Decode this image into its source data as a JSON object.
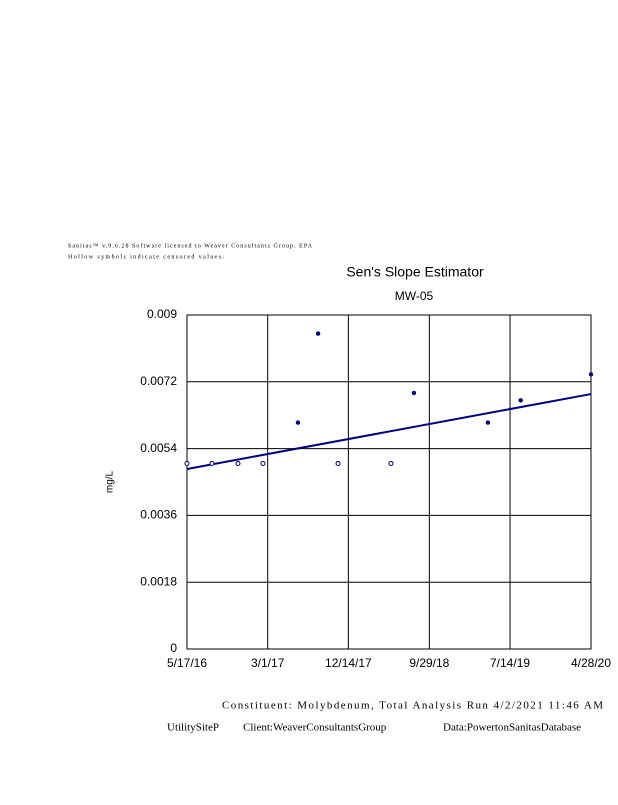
{
  "chart_data": {
    "type": "scatter",
    "header": [
      "Sanitas™ v.9.6.28 Software licensed to Weaver Consultants Group. EPA",
      "Hollow symbols indicate censored values."
    ],
    "title": "Sen's Slope Estimator",
    "subtitle": "MW-05",
    "y_label": "mg/L",
    "xlim": [
      "5/17/16",
      "4/28/20"
    ],
    "xticks": [
      "5/17/16",
      "3/1/17",
      "12/14/17",
      "9/29/18",
      "7/14/19",
      "4/28/20"
    ],
    "ylim": [
      0,
      0.009
    ],
    "yticks": [
      0,
      0.0018,
      0.0036,
      0.0054,
      0.0072,
      0.009
    ],
    "grid": true,
    "color": "#000080",
    "detected": {
      "x": [
        "6/17/17",
        "8/28/17",
        "8/5/18",
        "4/26/19",
        "8/21/19",
        "4/28/20"
      ],
      "values": [
        0.0061,
        0.0085,
        0.0069,
        0.0061,
        0.0067,
        0.0074
      ]
    },
    "censored": {
      "x": [
        "5/17/16",
        "8/14/16",
        "11/15/16",
        "2/12/17",
        "11/7/17",
        "5/15/18"
      ],
      "values": [
        0.005,
        0.005,
        0.005,
        0.005,
        0.005,
        0.005
      ]
    },
    "trend": {
      "x": [
        "5/17/16",
        "4/28/20"
      ],
      "values": [
        0.00485,
        0.00687
      ]
    },
    "footer": [
      "Constituent: Molybdenum, Total Analysis Run 4/2/2021 11:46 AM",
      "UtilitySiteP",
      "Client:WeaverConsultantsGroup",
      "Data:PowertonSanitasDatabase"
    ]
  }
}
